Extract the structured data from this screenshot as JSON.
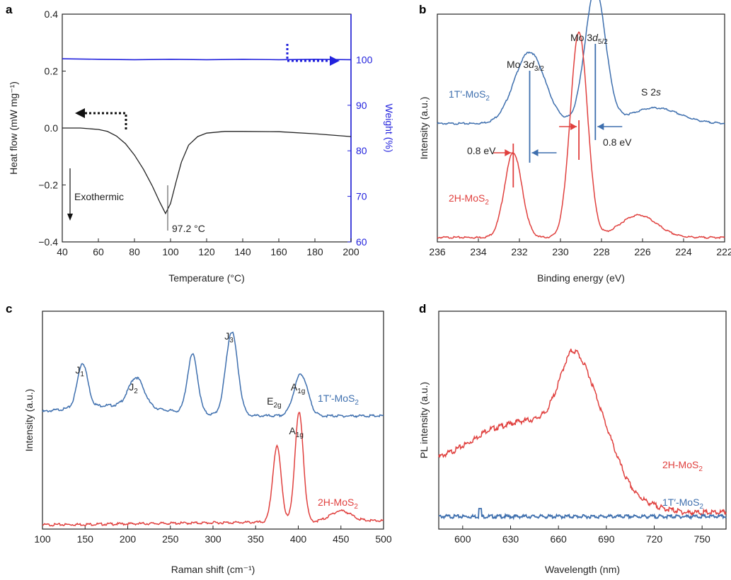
{
  "colors": {
    "red": "#e0403e",
    "steel_blue": "#3e6fae",
    "blue": "#2222dd",
    "black": "#222222"
  },
  "chart_data": [
    {
      "panel": "a",
      "type": "line",
      "xlabel": "Temperature (°C)",
      "ylabel": "Heat flow (mW mg⁻¹)",
      "y2label": "Weight (%)",
      "xlim": [
        40,
        200
      ],
      "ylim": [
        -0.4,
        0.4
      ],
      "y2lim": [
        60,
        110
      ],
      "xticks": [
        "40",
        "60",
        "80",
        "100",
        "120",
        "140",
        "160",
        "180",
        "200"
      ],
      "yticks": [
        "0.4",
        "0.2",
        "0.0",
        "−0.2",
        "−0.4"
      ],
      "y2ticks": [
        "100",
        "90",
        "80",
        "70",
        "60"
      ],
      "series": [
        {
          "role": "heat_flow",
          "axis": "left",
          "color": "#222222",
          "points": [
            [
              40,
              0.0
            ],
            [
              50,
              0.0
            ],
            [
              60,
              -0.005
            ],
            [
              65,
              -0.012
            ],
            [
              70,
              -0.028
            ],
            [
              75,
              -0.055
            ],
            [
              80,
              -0.095
            ],
            [
              85,
              -0.145
            ],
            [
              90,
              -0.205
            ],
            [
              94,
              -0.26
            ],
            [
              97.2,
              -0.3
            ],
            [
              100,
              -0.265
            ],
            [
              103,
              -0.19
            ],
            [
              106,
              -0.12
            ],
            [
              110,
              -0.06
            ],
            [
              115,
              -0.03
            ],
            [
              120,
              -0.018
            ],
            [
              130,
              -0.012
            ],
            [
              140,
              -0.012
            ],
            [
              160,
              -0.013
            ],
            [
              180,
              -0.02
            ],
            [
              200,
              -0.03
            ]
          ]
        },
        {
          "role": "weight",
          "axis": "right",
          "color": "#2222dd",
          "points": [
            [
              40,
              100.2
            ],
            [
              60,
              100.1
            ],
            [
              80,
              100.0
            ],
            [
              100,
              100.1
            ],
            [
              120,
              100.0
            ],
            [
              140,
              100.1
            ],
            [
              160,
              100.0
            ],
            [
              180,
              100.1
            ],
            [
              200,
              100.0
            ]
          ]
        }
      ],
      "annotations": {
        "peak": "97.2 °C",
        "exo": "Exothermic"
      }
    },
    {
      "panel": "b",
      "type": "line",
      "xlabel": "Binding energy (eV)",
      "ylabel": "Intensity (a.u.)",
      "xlim": [
        236,
        222
      ],
      "x_reversed": true,
      "xticks": [
        "236",
        "234",
        "232",
        "230",
        "228",
        "226",
        "224",
        "222"
      ],
      "series": [
        {
          "name": "1T′-MoS",
          "sub": "2",
          "color": "#3e6fae",
          "baseline": 0.53,
          "peaks": [
            [
              231.5,
              0.32,
              0.75
            ],
            [
              228.3,
              0.6,
              0.5
            ],
            [
              225.4,
              0.07,
              1.2
            ]
          ]
        },
        {
          "name": "2H-MoS",
          "sub": "2",
          "color": "#e0403e",
          "baseline": 0.02,
          "peaks": [
            [
              232.3,
              0.38,
              0.42
            ],
            [
              229.1,
              0.92,
              0.42
            ],
            [
              226.2,
              0.1,
              0.9
            ]
          ]
        }
      ],
      "labels": {
        "mo32": "Mo 3",
        "mo32_d": "d",
        "mo32_sub": "3/2",
        "mo52": "Mo 3",
        "mo52_d": "d",
        "mo52_sub": "5/2",
        "s2s": "S 2",
        "s2s_s": "s",
        "shift_left": "0.8 eV",
        "shift_right": "0.8 eV"
      }
    },
    {
      "panel": "c",
      "type": "line",
      "xlabel": "Raman shift (cm⁻¹)",
      "ylabel": "Intensity (a.u.)",
      "xlim": [
        100,
        500
      ],
      "xticks": [
        "100",
        "150",
        "200",
        "250",
        "300",
        "350",
        "400",
        "450",
        "500"
      ],
      "series": [
        {
          "name": "1T′-MoS",
          "sub": "2",
          "color": "#3e6fae",
          "baseline": 0.52,
          "peaks": [
            [
              147,
              0.21,
              6
            ],
            [
              210,
              0.14,
              9
            ],
            [
              276,
              0.28,
              6
            ],
            [
              322,
              0.4,
              7
            ],
            [
              403,
              0.2,
              8
            ]
          ]
        },
        {
          "name": "2H-MoS",
          "sub": "2",
          "color": "#e0403e",
          "baseline": 0.0,
          "peaks": [
            [
              375,
              0.36,
              5
            ],
            [
              401,
              0.52,
              5
            ],
            [
              450,
              0.05,
              12
            ]
          ]
        }
      ],
      "peak_labels": [
        {
          "x": 147,
          "main": "J",
          "sub": "1"
        },
        {
          "x": 210,
          "main": "J",
          "sub": "2"
        },
        {
          "x": 322,
          "main": "J",
          "sub": "3"
        },
        {
          "x": 403,
          "main": "A",
          "sub": "1g"
        },
        {
          "x": 375,
          "main": "E",
          "sub": "2g"
        },
        {
          "x": 401,
          "main": "A",
          "sub": "1g"
        }
      ]
    },
    {
      "panel": "d",
      "type": "line",
      "xlabel": "Wavelength (nm)",
      "ylabel": "PL intensity (a.u.)",
      "xlim": [
        585,
        765
      ],
      "xticks": [
        "600",
        "630",
        "660",
        "690",
        "720",
        "750"
      ],
      "series": [
        {
          "name": "2H-MoS",
          "sub": "2",
          "color": "#e0403e",
          "points": [
            [
              585,
              0.33
            ],
            [
              595,
              0.36
            ],
            [
              605,
              0.4
            ],
            [
              615,
              0.45
            ],
            [
              625,
              0.47
            ],
            [
              635,
              0.49
            ],
            [
              645,
              0.5
            ],
            [
              652,
              0.53
            ],
            [
              658,
              0.62
            ],
            [
              664,
              0.75
            ],
            [
              668,
              0.81
            ],
            [
              672,
              0.8
            ],
            [
              678,
              0.72
            ],
            [
              684,
              0.6
            ],
            [
              690,
              0.47
            ],
            [
              696,
              0.35
            ],
            [
              702,
              0.24
            ],
            [
              708,
              0.17
            ],
            [
              715,
              0.13
            ],
            [
              725,
              0.1
            ],
            [
              740,
              0.08
            ],
            [
              765,
              0.08
            ]
          ]
        },
        {
          "name": "1T′-MoS",
          "sub": "2",
          "color": "#3e6fae",
          "points": [
            [
              585,
              0.0
            ],
            [
              610,
              0.0
            ],
            [
              611,
              0.015
            ],
            [
              612,
              0.0
            ],
            [
              765,
              0.0
            ]
          ]
        }
      ]
    }
  ]
}
